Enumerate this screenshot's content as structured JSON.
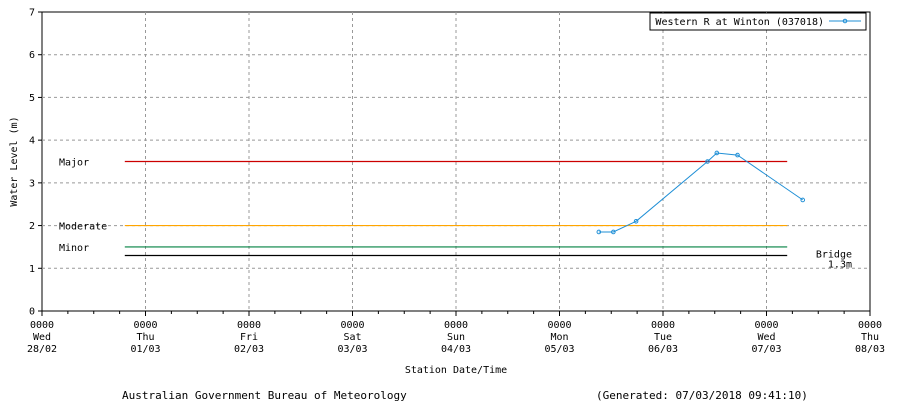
{
  "chart_data": {
    "type": "line",
    "ylabel": "Water Level (m)",
    "xlabel": "Station Date/Time",
    "ylim": [
      0,
      7
    ],
    "yticks": [
      0,
      1,
      2,
      3,
      4,
      5,
      6,
      7
    ],
    "xlim_days": [
      0,
      8
    ],
    "x_ticks": [
      {
        "time": "0000",
        "day": "Wed",
        "date": "28/02"
      },
      {
        "time": "0000",
        "day": "Thu",
        "date": "01/03"
      },
      {
        "time": "0000",
        "day": "Fri",
        "date": "02/03"
      },
      {
        "time": "0000",
        "day": "Sat",
        "date": "03/03"
      },
      {
        "time": "0000",
        "day": "Sun",
        "date": "04/03"
      },
      {
        "time": "0000",
        "day": "Mon",
        "date": "05/03"
      },
      {
        "time": "0000",
        "day": "Tue",
        "date": "06/03"
      },
      {
        "time": "0000",
        "day": "Wed",
        "date": "07/03"
      },
      {
        "time": "0000",
        "day": "Thu",
        "date": "08/03"
      }
    ],
    "grid": true,
    "legend_position": "top-right",
    "series": [
      {
        "name": "Western R at Winton (037018)",
        "color": "#1f8fd6",
        "points": [
          {
            "t": 5.38,
            "y": 1.85
          },
          {
            "t": 5.52,
            "y": 1.85
          },
          {
            "t": 5.74,
            "y": 2.1
          },
          {
            "t": 6.43,
            "y": 3.5
          },
          {
            "t": 6.52,
            "y": 3.7
          },
          {
            "t": 6.72,
            "y": 3.65
          },
          {
            "t": 7.35,
            "y": 2.6
          }
        ]
      }
    ],
    "thresholds": [
      {
        "label": "Major",
        "value": 3.5,
        "color": "#cc0000"
      },
      {
        "label": "Moderate",
        "value": 2.0,
        "color": "#ffa500"
      },
      {
        "label": "Minor",
        "value": 1.5,
        "color": "#008040"
      },
      {
        "label": "Bridge",
        "sublabel": "1.3m",
        "value": 1.3,
        "color": "#000000"
      }
    ],
    "threshold_span_days": [
      0.8,
      7.2
    ]
  },
  "footer": {
    "left": "Australian Government Bureau of Meteorology",
    "right": "(Generated: 07/03/2018 09:41:10)"
  }
}
